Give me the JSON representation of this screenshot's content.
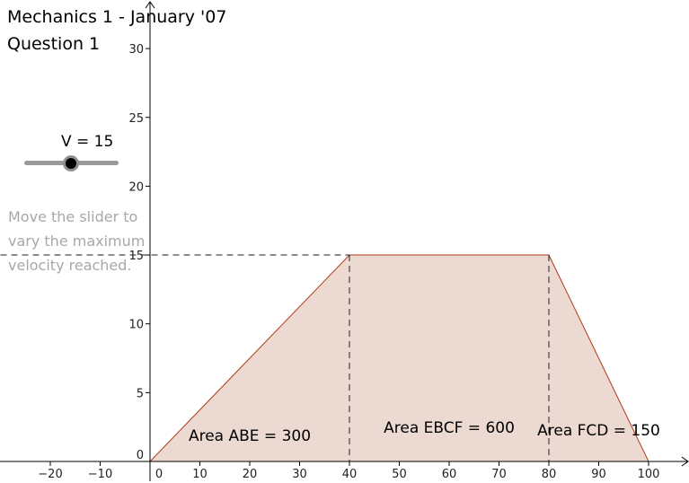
{
  "header": {
    "title": "Mechanics 1 - January '07",
    "subtitle": "Question 1"
  },
  "slider": {
    "label": "V = 15",
    "value": 15
  },
  "hint": "Move the slider to vary the maximum velocity reached.",
  "chart_data": {
    "type": "area",
    "x_ticks": [
      -20,
      -10,
      0,
      10,
      20,
      30,
      40,
      50,
      60,
      70,
      80,
      90,
      100
    ],
    "y_ticks": [
      0,
      5,
      10,
      15,
      20,
      25,
      30
    ],
    "xlim": [
      -30,
      108
    ],
    "ylim": [
      0,
      31
    ],
    "shape": {
      "x": [
        0,
        40,
        80,
        100
      ],
      "y": [
        0,
        15,
        15,
        0
      ]
    },
    "fill_color": "#ecd9d1",
    "stroke_color": "#b03a14",
    "max_velocity": 15,
    "areas": [
      {
        "label": "Area ABE = 300",
        "x": 20,
        "y": 1.5
      },
      {
        "label": "Area EBCF = 600",
        "x": 60,
        "y": 2.1
      },
      {
        "label": "Area FCD = 150",
        "x": 90,
        "y": 1.9
      }
    ],
    "grid": false
  }
}
